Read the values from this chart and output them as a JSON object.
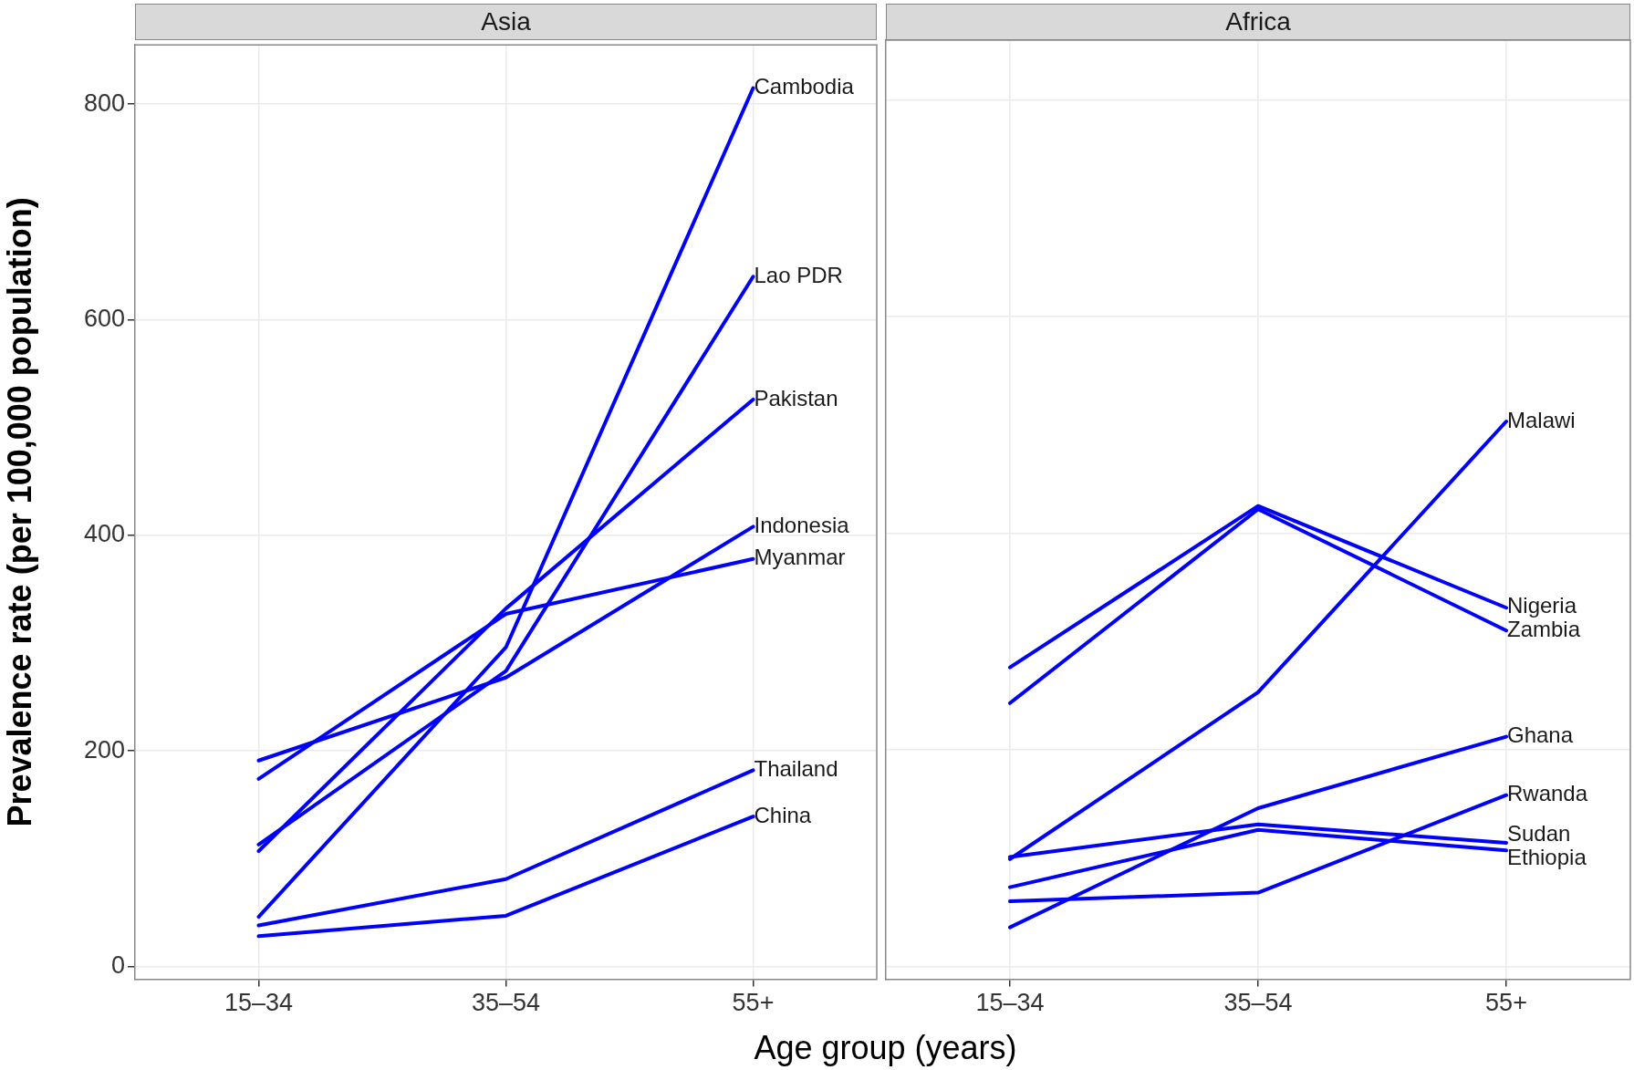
{
  "chart_data": [
    {
      "type": "line",
      "title": "Asia",
      "ylabel": "Prevalence rate (per 100,000 population)",
      "xlabel": "Age group (years)",
      "categories": [
        "15–34",
        "35–54",
        "55+"
      ],
      "ylim": [
        -12,
        855
      ],
      "yticks": [
        0,
        200,
        400,
        600,
        800
      ],
      "grid": true,
      "marker": "none",
      "series": [
        {
          "name": "Cambodia",
          "color": "#0000ff",
          "values": [
            46,
            296,
            815
          ]
        },
        {
          "name": "Lao PDR",
          "color": "#0000ff",
          "values": [
            113,
            274,
            640
          ]
        },
        {
          "name": "Pakistan",
          "color": "#0000ff",
          "values": [
            107,
            332,
            526
          ]
        },
        {
          "name": "Indonesia",
          "color": "#0000ff",
          "values": [
            191,
            268,
            408
          ]
        },
        {
          "name": "Myanmar",
          "color": "#0000ff",
          "values": [
            174,
            327,
            378
          ]
        },
        {
          "name": "Thailand",
          "color": "#0000ff",
          "values": [
            38,
            81,
            182
          ]
        },
        {
          "name": "China",
          "color": "#0000ff",
          "values": [
            28,
            47,
            139
          ]
        }
      ]
    },
    {
      "type": "line",
      "title": "Africa",
      "categories": [
        "15–34",
        "35–54",
        "55+"
      ],
      "ylim": [
        -12,
        855
      ],
      "yticks": [
        0,
        200,
        400,
        600,
        800
      ],
      "grid": true,
      "marker": "none",
      "tick_labels": "x",
      "series": [
        {
          "name": "Malawi",
          "color": "#0000ff",
          "values": [
            99,
            253,
            503
          ]
        },
        {
          "name": "Nigeria",
          "color": "#0000ff",
          "values": [
            276,
            425,
            331
          ]
        },
        {
          "name": "Zambia",
          "color": "#0000ff",
          "values": [
            243,
            422,
            310
          ]
        },
        {
          "name": "Ghana",
          "color": "#0000ff",
          "values": [
            36,
            146,
            212
          ]
        },
        {
          "name": "Rwanda",
          "color": "#0000ff",
          "values": [
            60,
            68,
            158
          ]
        },
        {
          "name": "Sudan",
          "color": "#0000ff",
          "values": [
            101,
            131,
            114
          ]
        },
        {
          "name": "Ethiopia",
          "color": "#0000ff",
          "values": [
            73,
            126,
            107
          ]
        }
      ]
    }
  ]
}
